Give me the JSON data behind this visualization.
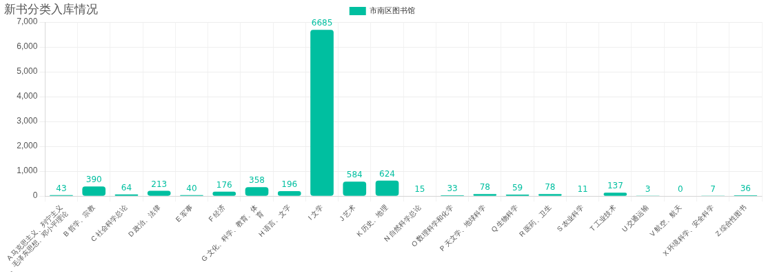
{
  "chart_data": {
    "type": "bar",
    "title": "新书分类入库情况",
    "categories": [
      "A 马克思主义、列宁主义、毛泽东思想、邓小平理论",
      "B 哲学、宗教",
      "C 社会科学总论",
      "D 政治、法律",
      "E 军事",
      "F 经济",
      "G 文化、科学、教育、体育",
      "H 语言、文字",
      "I 文学",
      "J 艺术",
      "K 历史、地理",
      "N 自然科学总论",
      "O 数理科学和化学",
      "P 天文学、地球科学",
      "Q 生物科学",
      "R 医药、卫生",
      "S 农业科学",
      "T 工业技术",
      "U 交通运输",
      "V 航空、航天",
      "X 环境科学、安全科学",
      "Z 综合性图书"
    ],
    "series": [
      {
        "name": "市南区图书馆",
        "color": "#00bfa0",
        "values": [
          43,
          390,
          64,
          213,
          40,
          176,
          358,
          196,
          6685,
          584,
          624,
          15,
          33,
          78,
          59,
          78,
          11,
          137,
          3,
          0,
          7,
          36
        ]
      }
    ],
    "ylim": [
      0,
      7000
    ],
    "yticks": [
      0,
      {
        "value": 1000,
        "label": "1,000"
      },
      {
        "value": 2000,
        "label": "2,000"
      },
      {
        "value": 3000,
        "label": "3,000"
      },
      {
        "value": 4000,
        "label": "4,000"
      },
      {
        "value": 5000,
        "label": "5,000"
      },
      {
        "value": 6000,
        "label": "6,000"
      },
      {
        "value": 7000,
        "label": "7,000"
      }
    ],
    "grid": true,
    "legend": "top",
    "data_labels": true
  }
}
